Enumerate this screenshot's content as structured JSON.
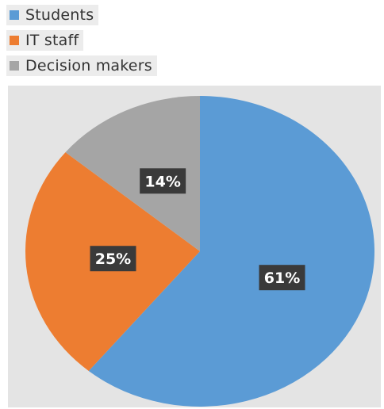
{
  "chart_data": {
    "type": "pie",
    "title": "",
    "categories": [
      "Students",
      "IT staff",
      "Decision makers"
    ],
    "values": [
      61,
      25,
      14
    ],
    "labels": [
      "61%",
      "25%",
      "14%"
    ],
    "colors": [
      "#5b9bd5",
      "#ed7d31",
      "#a5a5a5"
    ],
    "legend": "top-left"
  }
}
